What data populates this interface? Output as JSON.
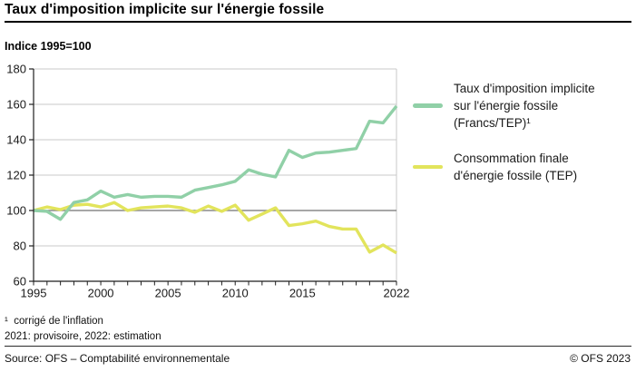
{
  "header": {
    "title": "Taux d'imposition implicite sur l'énergie fossile",
    "subtitle": "Indice 1995=100"
  },
  "chart_data": {
    "type": "line",
    "title": "Taux d'imposition implicite sur l'énergie fossile",
    "ylabel": "Indice 1995=100",
    "x": [
      1995,
      1996,
      1997,
      1998,
      1999,
      2000,
      2001,
      2002,
      2003,
      2004,
      2005,
      2006,
      2007,
      2008,
      2009,
      2010,
      2011,
      2012,
      2013,
      2014,
      2015,
      2016,
      2017,
      2018,
      2019,
      2020,
      2021,
      2022
    ],
    "series": [
      {
        "name": "Taux d'imposition implicite sur l'énergie fossile (Francs/TEP)¹",
        "color": "#90D0A7",
        "values": [
          100,
          99.5,
          95,
          104.5,
          106,
          111,
          107.5,
          109,
          107.5,
          108,
          108,
          107.5,
          111.5,
          113,
          114.5,
          116.5,
          123,
          120.5,
          119,
          134,
          130,
          132.5,
          133,
          134,
          135,
          150.5,
          149.5,
          159
        ]
      },
      {
        "name": "Consommation finale d'énergie fossile (TEP)",
        "color": "#E2E45C",
        "values": [
          100,
          102,
          100.5,
          103,
          103.5,
          102,
          104.5,
          100,
          101.5,
          102,
          102.5,
          101.5,
          99,
          102.5,
          99.5,
          103,
          94.5,
          98,
          101.5,
          91.5,
          92.5,
          94,
          91,
          89.5,
          89.5,
          76.5,
          80.5,
          76
        ]
      }
    ],
    "ylim": [
      60,
      180
    ],
    "yticks": [
      60,
      80,
      100,
      120,
      140,
      160,
      180
    ],
    "xtick_labels": [
      1995,
      2000,
      2005,
      2010,
      2015,
      2022
    ],
    "baseline": 100,
    "grid": true,
    "grid_color": "#C9C9C9",
    "baseline_color": "#8A8A8A",
    "axis_color": "#1F1F1F",
    "legend_position": "right"
  },
  "footnotes": [
    "¹  corrigé de l'inflation",
    "2021: provisoire, 2022: estimation"
  ],
  "footer": {
    "source": "Source: OFS – Comptabilité environnementale",
    "copyright": "© OFS 2023"
  }
}
